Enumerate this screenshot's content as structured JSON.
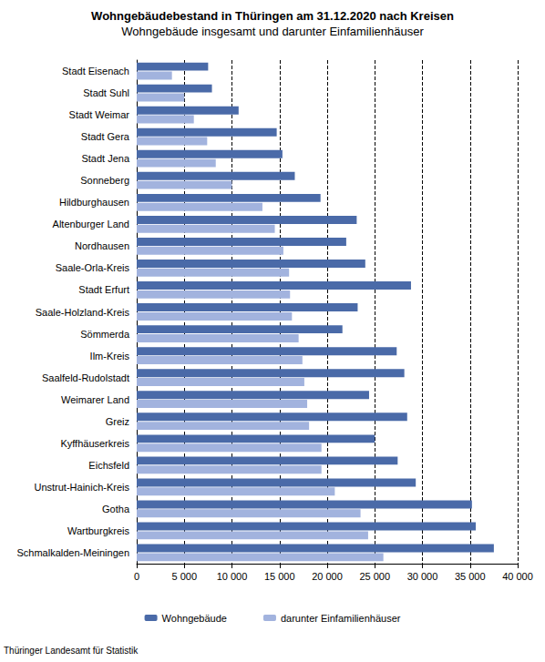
{
  "chart_data": {
    "type": "bar",
    "orientation": "horizontal",
    "title": "Wohngebäudebestand in Thüringen am 31.12.2020 nach Kreisen",
    "subtitle": "Wohngebäude insgesamt und darunter Einfamilienhäuser",
    "source": "Thüringer Landesamt für Statistik",
    "categories": [
      "Stadt Eisenach",
      "Stadt Suhl",
      "Stadt Weimar",
      "Stadt Gera",
      "Stadt Jena",
      "Sonneberg",
      "Hildburghausen",
      "Altenburger Land",
      "Nordhausen",
      "Saale-Orla-Kreis",
      "Stadt Erfurt",
      "Saale-Holzland-Kreis",
      "Sömmerda",
      "Ilm-Kreis",
      "Saalfeld-Rudolstadt",
      "Weimarer Land",
      "Greiz",
      "Kyffhäuserkreis",
      "Eichsfeld",
      "Unstrut-Hainich-Kreis",
      "Gotha",
      "Wartburgkreis",
      "Schmalkalden-Meiningen"
    ],
    "series": [
      {
        "name": "Wohngebäude",
        "color": "#4a6aa8",
        "values": [
          7500,
          7900,
          10700,
          14700,
          15300,
          16600,
          19300,
          23100,
          22000,
          24000,
          28800,
          23200,
          21600,
          27300,
          28100,
          24400,
          28400,
          25000,
          27400,
          29300,
          35200,
          35600,
          37500
        ]
      },
      {
        "name": "darunter Einfamilienhäuser",
        "color": "#a2b3de",
        "values": [
          3700,
          5000,
          6000,
          7400,
          8300,
          10000,
          13200,
          14500,
          15400,
          16000,
          16100,
          16300,
          17000,
          17400,
          17600,
          17900,
          18100,
          19400,
          19400,
          20800,
          23500,
          24300,
          25900
        ]
      }
    ],
    "xlim": [
      0,
      40000
    ],
    "xticks": [
      0,
      {
        "value": 5000,
        "label": "5 000"
      },
      {
        "value": 10000,
        "label": "10 000"
      },
      {
        "value": 15000,
        "label": "15 000"
      },
      {
        "value": 20000,
        "label": "20 000"
      },
      {
        "value": 25000,
        "label": "25 000"
      },
      {
        "value": 30000,
        "label": "30 000"
      },
      {
        "value": 35000,
        "label": "35 000"
      },
      {
        "value": 40000,
        "label": "40 000"
      }
    ],
    "grid": true,
    "legend": "bottom"
  }
}
